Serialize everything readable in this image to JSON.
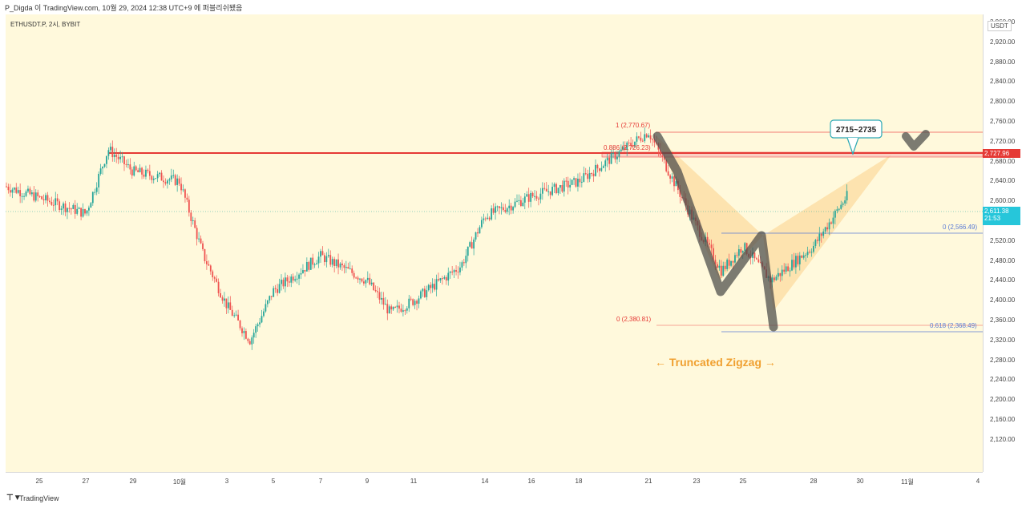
{
  "header": {
    "attribution": "P_Digda 이 TradingView.com, 10월 29, 2024 12:38 UTC+9 에 퍼블리쉬됐음"
  },
  "symbol": {
    "label": "ETHUSDT.P, 2시, BYBIT"
  },
  "currency": "USDT",
  "price_axis": {
    "ticks": [
      "2,960.00",
      "2,920.00",
      "2,880.00",
      "2,840.00",
      "2,800.00",
      "2,760.00",
      "2,720.00",
      "2,680.00",
      "2,640.00",
      "2,600.00",
      "2,560.00",
      "2,520.00",
      "2,480.00",
      "2,440.00",
      "2,400.00",
      "2,360.00",
      "2,320.00",
      "2,280.00",
      "2,240.00",
      "2,200.00",
      "2,160.00",
      "2,120.00"
    ],
    "resistance_tag": "2,727.96",
    "last_price_tag": "2,611.38",
    "countdown": "21:53"
  },
  "time_axis": {
    "labels": [
      "25",
      "27",
      "29",
      "10월",
      "3",
      "5",
      "7",
      "9",
      "11",
      "14",
      "16",
      "18",
      "21",
      "23",
      "25",
      "28",
      "30",
      "11월",
      "4"
    ]
  },
  "annotations": {
    "target_box": "2715~2735",
    "pattern_label": "← Truncated Zigzag →",
    "fib": {
      "f1": "1 (2,770.67)",
      "f886": "0.886 (2,726.23)",
      "f0a": "0 (2,566.49)",
      "f0b": "0 (2,380.81)",
      "f618": "0.618 (2,368.49)"
    }
  },
  "colors": {
    "background": "#fff9dc",
    "up": "#26a69a",
    "down": "#ef5350",
    "resistance": "#e53935",
    "fib_blue": "#5b7bd5",
    "price_tag": "#26c6da"
  },
  "footer": {
    "brand": "TradingView"
  },
  "chart_data": {
    "type": "candlestick",
    "title": "",
    "symbol": "ETHUSDT.P",
    "interval": "2시",
    "exchange": "BYBIT",
    "ylim": [
      2090,
      2985
    ],
    "x_labels": [
      "25",
      "27",
      "29",
      "10월",
      "3",
      "5",
      "7",
      "9",
      "11",
      "14",
      "16",
      "18",
      "21",
      "23",
      "25",
      "28",
      "30",
      "11월",
      "4"
    ],
    "price_path_approx": [
      {
        "x": "25",
        "price": 2630
      },
      {
        "x": "27",
        "price": 2575
      },
      {
        "x": "28",
        "price": 2705
      },
      {
        "x": "29",
        "price": 2660
      },
      {
        "x": "10월",
        "price": 2640
      },
      {
        "x": "2",
        "price": 2490
      },
      {
        "x": "3",
        "price": 2390
      },
      {
        "x": "4",
        "price": 2320
      },
      {
        "x": "5",
        "price": 2420
      },
      {
        "x": "7",
        "price": 2490
      },
      {
        "x": "9",
        "price": 2440
      },
      {
        "x": "10",
        "price": 2375
      },
      {
        "x": "11",
        "price": 2400
      },
      {
        "x": "13",
        "price": 2470
      },
      {
        "x": "14",
        "price": 2570
      },
      {
        "x": "16",
        "price": 2610
      },
      {
        "x": "18",
        "price": 2640
      },
      {
        "x": "21",
        "price": 2740
      },
      {
        "x": "23",
        "price": 2550
      },
      {
        "x": "24",
        "price": 2460
      },
      {
        "x": "25",
        "price": 2510
      },
      {
        "x": "26",
        "price": 2440
      },
      {
        "x": "28",
        "price": 2510
      },
      {
        "x": "29",
        "price": 2611
      }
    ],
    "levels": [
      {
        "name": "resistance",
        "price": 2727.96
      },
      {
        "name": "fib 1",
        "price": 2770.67
      },
      {
        "name": "fib 0.886",
        "price": 2726.23
      },
      {
        "name": "fib 0 (a)",
        "price": 2566.49
      },
      {
        "name": "fib 0 (b)",
        "price": 2380.81
      },
      {
        "name": "fib 0.618",
        "price": 2368.49
      }
    ],
    "last_price": 2611.38
  }
}
